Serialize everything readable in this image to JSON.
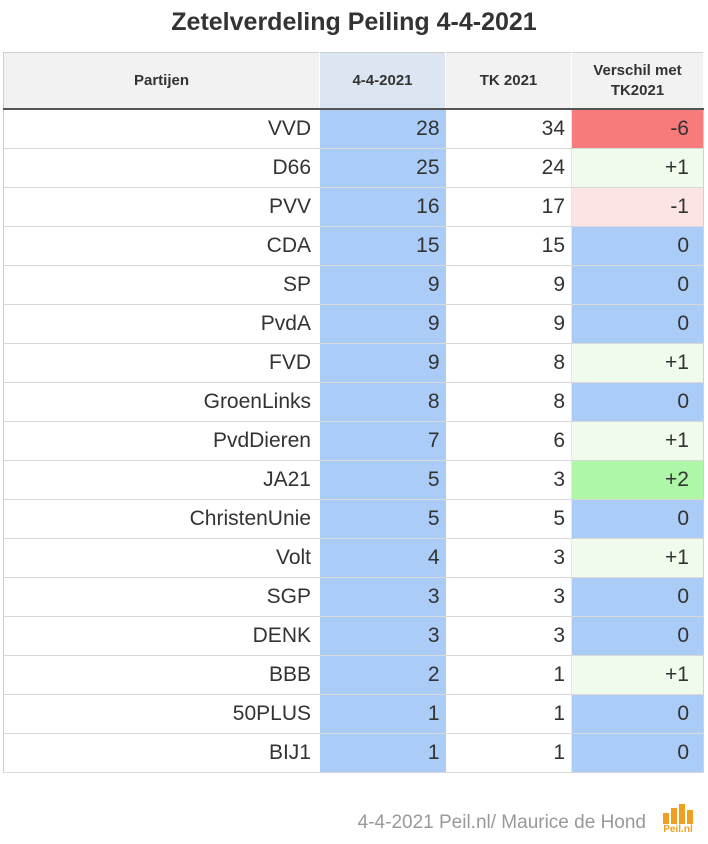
{
  "title": "Zetelverdeling Peiling 4-4-2021",
  "footer_text": "4-4-2021 Peil.nl/ Maurice de Hond",
  "logo_text": "Peil.nl",
  "colors": {
    "poll_cell": "#aaccf7",
    "diff_zero": "#aaccf7",
    "diff_plus1": "#f0fbec",
    "diff_plus2": "#aef7a8",
    "diff_minus1": "#fde4e4",
    "diff_minus6": "#f87b7b",
    "logo": "#f0a020"
  },
  "chart_data": {
    "type": "table",
    "columns": [
      "Partijen",
      "4-4-2021",
      "TK 2021",
      "Verschil met TK2021"
    ],
    "rows": [
      {
        "party": "VVD",
        "poll": "28",
        "tk": "34",
        "diff": "-6"
      },
      {
        "party": "D66",
        "poll": "25",
        "tk": "24",
        "diff": "+1"
      },
      {
        "party": "PVV",
        "poll": "16",
        "tk": "17",
        "diff": "-1"
      },
      {
        "party": "CDA",
        "poll": "15",
        "tk": "15",
        "diff": "0"
      },
      {
        "party": "SP",
        "poll": "9",
        "tk": "9",
        "diff": "0"
      },
      {
        "party": "PvdA",
        "poll": "9",
        "tk": "9",
        "diff": "0"
      },
      {
        "party": "FVD",
        "poll": "9",
        "tk": "8",
        "diff": "+1"
      },
      {
        "party": "GroenLinks",
        "poll": "8",
        "tk": "8",
        "diff": "0"
      },
      {
        "party": "PvdDieren",
        "poll": "7",
        "tk": "6",
        "diff": "+1"
      },
      {
        "party": "JA21",
        "poll": "5",
        "tk": "3",
        "diff": "+2"
      },
      {
        "party": "ChristenUnie",
        "poll": "5",
        "tk": "5",
        "diff": "0"
      },
      {
        "party": "Volt",
        "poll": "4",
        "tk": "3",
        "diff": "+1"
      },
      {
        "party": "SGP",
        "poll": "3",
        "tk": "3",
        "diff": "0"
      },
      {
        "party": "DENK",
        "poll": "3",
        "tk": "3",
        "diff": "0"
      },
      {
        "party": "BBB",
        "poll": "2",
        "tk": "1",
        "diff": "+1"
      },
      {
        "party": "50PLUS",
        "poll": "1",
        "tk": "1",
        "diff": "0"
      },
      {
        "party": "BIJ1",
        "poll": "1",
        "tk": "1",
        "diff": "0"
      }
    ]
  }
}
